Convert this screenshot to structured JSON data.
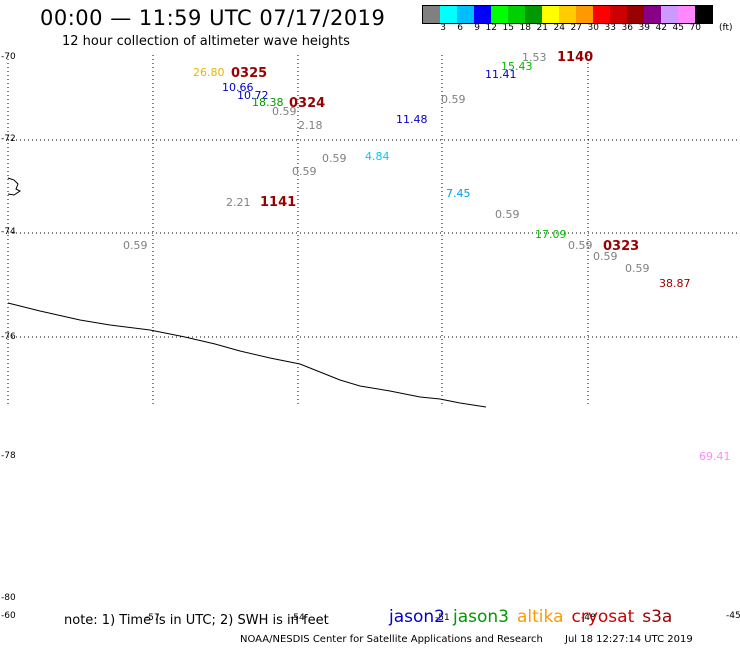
{
  "header": {
    "title": "00:00 — 11:59 UTC 07/17/2019",
    "subtitle": "12 hour collection of altimeter wave heights"
  },
  "colorbar": {
    "unit": "(ft)",
    "colors": [
      "#808080",
      "#00ffff",
      "#00bfff",
      "#0000ff",
      "#00ff00",
      "#00d000",
      "#009900",
      "#ffff00",
      "#ffcc00",
      "#ff9900",
      "#ff0000",
      "#cc0000",
      "#990000",
      "#880088",
      "#cc99ff",
      "#ff88ff",
      "#000000"
    ],
    "labels": [
      "3",
      "6",
      "9",
      "12",
      "15",
      "18",
      "21",
      "24",
      "27",
      "30",
      "33",
      "36",
      "39",
      "42",
      "45",
      "70"
    ]
  },
  "axes": {
    "lat_labels": [
      {
        "text": "-70",
        "value": -70
      },
      {
        "text": "-72",
        "value": -72
      },
      {
        "text": "-74",
        "value": -74
      },
      {
        "text": "-76",
        "value": -76
      },
      {
        "text": "-78",
        "value": -78
      },
      {
        "text": "-80",
        "value": -80
      }
    ],
    "lon_labels": [
      "-60",
      "-57",
      "-54",
      "-51",
      "-48",
      "-45"
    ]
  },
  "observations": [
    {
      "text": "26.80",
      "color": "#e8b800"
    },
    {
      "text": "10.66",
      "color": "#0000cc"
    },
    {
      "text": "10.72",
      "color": "#0000cc"
    },
    {
      "text": "18.38",
      "color": "#009900"
    },
    {
      "text": "0.59",
      "color": "#808080"
    },
    {
      "text": "2.18",
      "color": "#808080"
    },
    {
      "text": "0.59",
      "color": "#808080"
    },
    {
      "text": "0.59",
      "color": "#808080"
    },
    {
      "text": "4.84",
      "color": "#00c8ff"
    },
    {
      "text": "11.48",
      "color": "#0000cc"
    },
    {
      "text": "0.59",
      "color": "#808080"
    },
    {
      "text": "7.45",
      "color": "#00a0e0"
    },
    {
      "text": "0.59",
      "color": "#808080"
    },
    {
      "text": "17.09",
      "color": "#00bb00"
    },
    {
      "text": "0.59",
      "color": "#808080"
    },
    {
      "text": "0.59",
      "color": "#808080"
    },
    {
      "text": "0.59",
      "color": "#808080"
    },
    {
      "text": "38.87",
      "color": "#990000"
    },
    {
      "text": "2.21",
      "color": "#808080"
    },
    {
      "text": "0.59",
      "color": "#808080"
    },
    {
      "text": "1.53",
      "color": "#808080"
    },
    {
      "text": "15.43",
      "color": "#00bb00"
    },
    {
      "text": "11.41",
      "color": "#0000cc"
    },
    {
      "text": "69.41",
      "color": "#ff88ff"
    }
  ],
  "pass_times": [
    {
      "text": "0325",
      "color": "#990000"
    },
    {
      "text": "0324",
      "color": "#990000"
    },
    {
      "text": "1141",
      "color": "#990000"
    },
    {
      "text": "1140",
      "color": "#990000"
    },
    {
      "text": "0323",
      "color": "#990000"
    }
  ],
  "footer": {
    "note": "note: 1) Time is in UTC; 2) SWH is in feet",
    "legend": [
      {
        "text": "jason2",
        "color": "#0000cc"
      },
      {
        "text": "jason3",
        "color": "#009900"
      },
      {
        "text": "altika",
        "color": "#ff9900"
      },
      {
        "text": "cryosat",
        "color": "#cc0000"
      },
      {
        "text": "s3a",
        "color": "#990000"
      }
    ],
    "credit": "NOAA/NESDIS Center for Satellite Applications and Research",
    "timestamp": "Jul 18 12:27:14 UTC 2019"
  }
}
